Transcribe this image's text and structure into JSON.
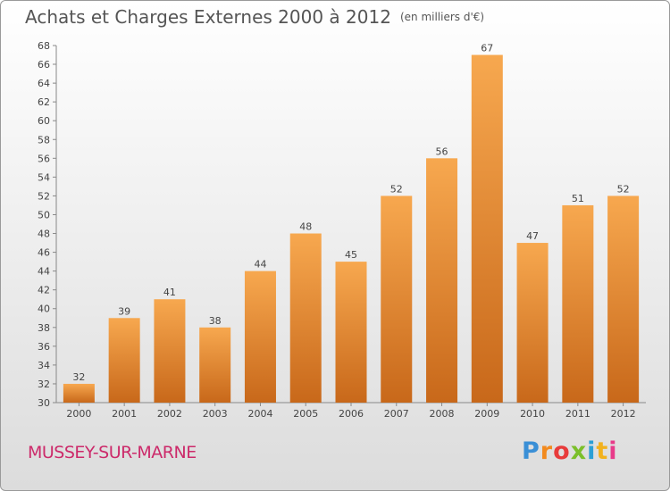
{
  "header": {
    "title": "Achats et Charges Externes 2000 à 2012",
    "unit": "(en milliers d'€)"
  },
  "footer": {
    "town": "MUSSEY-SUR-MARNE",
    "logo_letters": [
      "P",
      "r",
      "o",
      "x",
      "i",
      "t",
      "i"
    ],
    "logo_colors": [
      "#3a8fd6",
      "#f28a1e",
      "#e83b3b",
      "#7bbf2a",
      "#2a9fd6",
      "#f2b21e",
      "#e83b8a"
    ]
  },
  "colors": {
    "bar_light": "#f7a84f",
    "bar_dark": "#c8681a",
    "axis": "#888888",
    "grid": "#d8d8d8",
    "text": "#444444"
  },
  "chart_data": {
    "type": "bar",
    "title": "Achats et Charges Externes 2000 à 2012",
    "subtitle": "(en milliers d'€)",
    "categories": [
      "2000",
      "2001",
      "2002",
      "2003",
      "2004",
      "2005",
      "2006",
      "2007",
      "2008",
      "2009",
      "2010",
      "2011",
      "2012"
    ],
    "values": [
      32,
      39,
      41,
      38,
      44,
      48,
      45,
      52,
      56,
      67,
      47,
      51,
      52
    ],
    "data_labels": [
      "32",
      "39",
      "41",
      "38",
      "44",
      "48",
      "45",
      "52",
      "56",
      "67",
      "47",
      "51",
      "52"
    ],
    "ylim": [
      30,
      68
    ],
    "yticks": [
      30,
      32,
      34,
      36,
      38,
      40,
      42,
      44,
      46,
      48,
      50,
      52,
      54,
      56,
      58,
      60,
      62,
      64,
      66,
      68
    ],
    "ytick_labels": [
      "30",
      "32",
      "34",
      "36",
      "38",
      "40",
      "42",
      "44",
      "46",
      "48",
      "50",
      "52",
      "54",
      "56",
      "58",
      "60",
      "62",
      "64",
      "66",
      "68"
    ],
    "xlabel": "",
    "ylabel": "",
    "grid": false,
    "legend": "none"
  }
}
